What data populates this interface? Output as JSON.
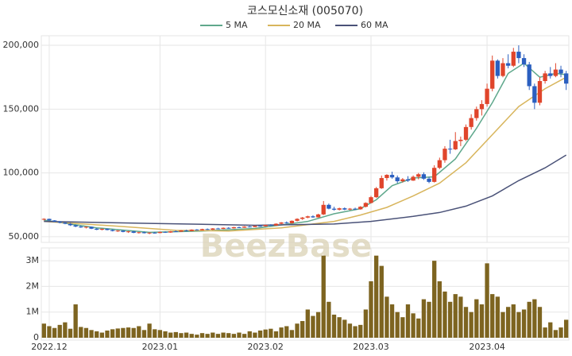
{
  "chart_data": {
    "type": "candlestick",
    "title": "코스모신소재 (005070)",
    "watermark": "BeezBase",
    "up_color": "#e0452b",
    "down_color": "#2b5fc0",
    "xlim": [
      0,
      100
    ],
    "xticks": [
      {
        "value": 1,
        "label": "2022.12"
      },
      {
        "value": 22,
        "label": "2023.01"
      },
      {
        "value": 42,
        "label": "2023.02"
      },
      {
        "value": 62,
        "label": "2023.03"
      },
      {
        "value": 84,
        "label": "2023.04"
      }
    ],
    "ylim": [
      45600,
      207500
    ],
    "yticks": [
      {
        "value": 50000,
        "label": "50,000"
      },
      {
        "value": 100000,
        "label": "100,000"
      },
      {
        "value": 150000,
        "label": "150,000"
      },
      {
        "value": 200000,
        "label": "200,000"
      }
    ],
    "grid": true,
    "ohlc": [
      [
        63500,
        64500,
        62800,
        64000
      ],
      [
        64000,
        64200,
        62500,
        62800
      ],
      [
        62800,
        63000,
        61500,
        61800
      ],
      [
        61800,
        62300,
        60500,
        61000
      ],
      [
        61000,
        61500,
        59800,
        60200
      ],
      [
        60200,
        60800,
        58500,
        59000
      ],
      [
        59000,
        59500,
        57500,
        58000
      ],
      [
        58000,
        58800,
        57000,
        57300
      ],
      [
        57300,
        58000,
        56500,
        57800
      ],
      [
        57800,
        58000,
        56000,
        56300
      ],
      [
        56300,
        56800,
        55200,
        55500
      ],
      [
        55500,
        56500,
        55000,
        56200
      ],
      [
        56200,
        56500,
        55000,
        55300
      ],
      [
        55300,
        55800,
        54200,
        54500
      ],
      [
        54500,
        55200,
        53800,
        54800
      ],
      [
        54800,
        55000,
        53500,
        53800
      ],
      [
        53800,
        54500,
        53000,
        54200
      ],
      [
        54200,
        54500,
        52800,
        53100
      ],
      [
        53100,
        53800,
        52500,
        53500
      ],
      [
        53500,
        54000,
        52600,
        52800
      ],
      [
        52800,
        53500,
        52000,
        53200
      ],
      [
        53200,
        53800,
        52500,
        52900
      ],
      [
        52900,
        54000,
        52700,
        53800
      ],
      [
        53800,
        54200,
        53000,
        53300
      ],
      [
        53300,
        54500,
        53100,
        54300
      ],
      [
        54300,
        55000,
        53800,
        54000
      ],
      [
        54000,
        55200,
        53800,
        55000
      ],
      [
        55000,
        55500,
        54200,
        54500
      ],
      [
        54500,
        55800,
        54300,
        55600
      ],
      [
        55600,
        56000,
        54800,
        55100
      ],
      [
        55100,
        56300,
        55000,
        56000
      ],
      [
        56000,
        56500,
        55300,
        55500
      ],
      [
        55500,
        56800,
        55300,
        56500
      ],
      [
        56500,
        57000,
        55800,
        56100
      ],
      [
        56100,
        57300,
        56000,
        57000
      ],
      [
        57000,
        57500,
        56300,
        56600
      ],
      [
        56600,
        57800,
        56400,
        57500
      ],
      [
        57500,
        58000,
        56800,
        57100
      ],
      [
        57100,
        58300,
        57000,
        58000
      ],
      [
        58000,
        58500,
        57300,
        57600
      ],
      [
        57600,
        58800,
        57400,
        58500
      ],
      [
        58500,
        59200,
        57900,
        58200
      ],
      [
        58200,
        59500,
        58000,
        59200
      ],
      [
        59200,
        59800,
        58500,
        58800
      ],
      [
        58800,
        60500,
        58600,
        60200
      ],
      [
        60200,
        61500,
        59800,
        61200
      ],
      [
        61200,
        62000,
        60300,
        60600
      ],
      [
        60600,
        62800,
        60400,
        62500
      ],
      [
        62500,
        64500,
        62000,
        64000
      ],
      [
        64000,
        65500,
        63200,
        65000
      ],
      [
        65000,
        66500,
        64500,
        66000
      ],
      [
        66000,
        66800,
        64800,
        65200
      ],
      [
        65200,
        68000,
        65000,
        67500
      ],
      [
        67500,
        78000,
        67000,
        75000
      ],
      [
        75000,
        76000,
        71500,
        72000
      ],
      [
        72000,
        73500,
        70500,
        71200
      ],
      [
        71200,
        72800,
        70600,
        72300
      ],
      [
        72300,
        73000,
        70800,
        71300
      ],
      [
        71300,
        72500,
        70800,
        72000
      ],
      [
        72000,
        72800,
        71000,
        71500
      ],
      [
        71500,
        74000,
        71200,
        73500
      ],
      [
        73500,
        77000,
        73000,
        76500
      ],
      [
        76500,
        82000,
        76000,
        81000
      ],
      [
        81000,
        89000,
        80500,
        88000
      ],
      [
        88000,
        98000,
        87500,
        96000
      ],
      [
        96000,
        99000,
        94000,
        98500
      ],
      [
        98500,
        101000,
        95500,
        96500
      ],
      [
        96500,
        98000,
        92000,
        93500
      ],
      [
        93500,
        96000,
        92500,
        95000
      ],
      [
        95000,
        97500,
        93000,
        94000
      ],
      [
        94000,
        98000,
        93800,
        97000
      ],
      [
        97000,
        100000,
        95000,
        99000
      ],
      [
        99000,
        100500,
        94500,
        95500
      ],
      [
        95500,
        97000,
        92000,
        93000
      ],
      [
        93000,
        106000,
        92500,
        104000
      ],
      [
        104000,
        112000,
        103000,
        110000
      ],
      [
        110000,
        121000,
        108000,
        119000
      ],
      [
        119000,
        126000,
        115000,
        118500
      ],
      [
        118500,
        132000,
        118000,
        125000
      ],
      [
        125000,
        128500,
        121000,
        126000
      ],
      [
        126000,
        138000,
        125000,
        136000
      ],
      [
        136000,
        146000,
        134000,
        143000
      ],
      [
        143000,
        152000,
        141000,
        150000
      ],
      [
        150000,
        157000,
        145000,
        154000
      ],
      [
        154000,
        170000,
        152000,
        166000
      ],
      [
        166000,
        192000,
        164000,
        188000
      ],
      [
        188000,
        189000,
        174000,
        176000
      ],
      [
        176000,
        190000,
        175000,
        186000
      ],
      [
        186000,
        193000,
        182000,
        184000
      ],
      [
        184000,
        198000,
        183000,
        195000
      ],
      [
        195000,
        200000,
        186000,
        190000
      ],
      [
        190000,
        193000,
        183000,
        185000
      ],
      [
        185000,
        187000,
        165000,
        168000
      ],
      [
        168000,
        170000,
        150000,
        155000
      ],
      [
        155000,
        175000,
        153000,
        172000
      ],
      [
        172000,
        180000,
        170000,
        178000
      ],
      [
        178000,
        183000,
        174000,
        176000
      ],
      [
        176000,
        186000,
        175000,
        181000
      ],
      [
        181000,
        184000,
        175000,
        178000
      ],
      [
        178000,
        180000,
        165000,
        170000
      ]
    ],
    "series": [
      {
        "name": "5 MA",
        "color": "#5fa88c",
        "x": [
          0,
          10,
          20,
          30,
          40,
          50,
          55,
          60,
          63,
          66,
          70,
          74,
          78,
          82,
          85,
          88,
          91,
          94,
          97,
          99
        ],
        "values": [
          63000,
          57000,
          53500,
          54500,
          56500,
          62000,
          68000,
          72000,
          79000,
          90000,
          96000,
          97000,
          111000,
          135000,
          155000,
          178000,
          186000,
          175000,
          178000,
          177000
        ]
      },
      {
        "name": "20 MA",
        "color": "#d8b55c",
        "x": [
          0,
          15,
          25,
          35,
          45,
          55,
          60,
          65,
          70,
          75,
          80,
          85,
          90,
          95,
          99
        ],
        "values": [
          62000,
          58000,
          55000,
          54500,
          57000,
          62000,
          67000,
          73000,
          82000,
          92000,
          108000,
          130000,
          152000,
          166000,
          175000
        ]
      },
      {
        "name": "60 MA",
        "color": "#4a5278",
        "x": [
          0,
          20,
          40,
          55,
          62,
          70,
          75,
          80,
          85,
          90,
          95,
          99
        ],
        "values": [
          62000,
          60500,
          59000,
          60000,
          62000,
          66000,
          69000,
          74000,
          82000,
          94000,
          104000,
          114000
        ]
      }
    ],
    "volume": {
      "color": "#7d6420",
      "ylim": [
        0,
        3500000
      ],
      "yticks": [
        0,
        {
          "value": 1000000,
          "label": "1M"
        },
        {
          "value": 2000000,
          "label": "2M"
        },
        {
          "value": 3000000,
          "label": "3M"
        }
      ],
      "values": [
        550000,
        450000,
        380000,
        500000,
        600000,
        350000,
        1300000,
        420000,
        380000,
        300000,
        250000,
        200000,
        280000,
        330000,
        360000,
        380000,
        400000,
        380000,
        450000,
        300000,
        550000,
        330000,
        300000,
        250000,
        200000,
        220000,
        180000,
        200000,
        150000,
        120000,
        180000,
        150000,
        200000,
        150000,
        200000,
        180000,
        150000,
        200000,
        150000,
        250000,
        200000,
        280000,
        320000,
        350000,
        250000,
        400000,
        450000,
        300000,
        550000,
        650000,
        1100000,
        850000,
        1000000,
        3200000,
        1400000,
        900000,
        800000,
        700000,
        550000,
        450000,
        500000,
        1100000,
        2200000,
        3200000,
        2800000,
        1600000,
        1300000,
        1000000,
        800000,
        1300000,
        950000,
        750000,
        1500000,
        1400000,
        3000000,
        2200000,
        1800000,
        1400000,
        1700000,
        1600000,
        1200000,
        1000000,
        1500000,
        1300000,
        2900000,
        1700000,
        1600000,
        1000000,
        1200000,
        1300000,
        1000000,
        1100000,
        1400000,
        1500000,
        1200000,
        400000,
        600000,
        300000,
        400000,
        700000
      ]
    }
  }
}
